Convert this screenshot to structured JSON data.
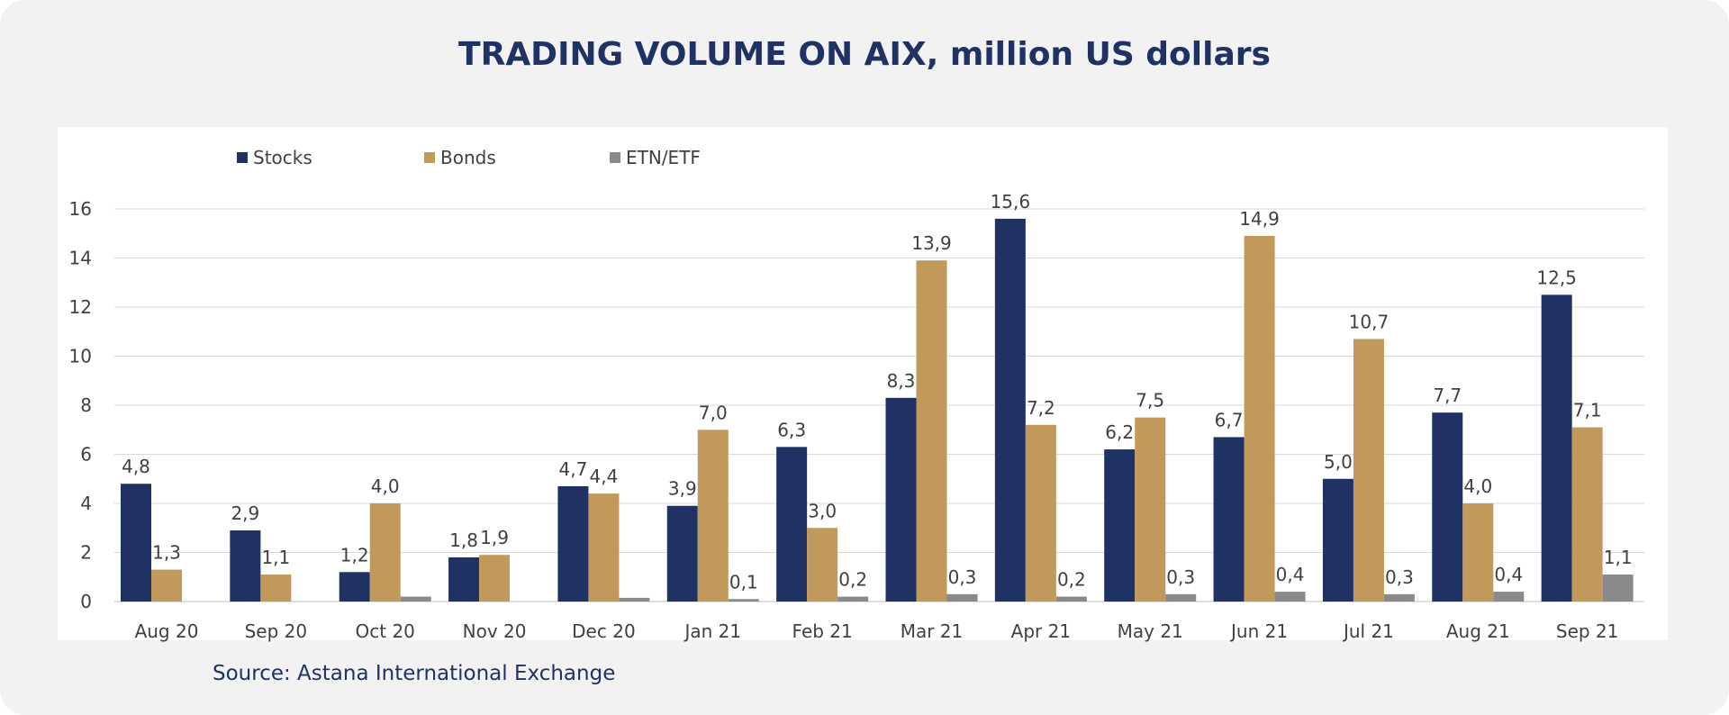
{
  "colors": {
    "stocks": "#1f3263",
    "bonds": "#c19a5b",
    "etn": "#8a8a8a",
    "grid": "#d9d9d9",
    "text": "#404040"
  },
  "source": "Source: Astana International Exchange",
  "chart_data": {
    "type": "bar",
    "title": "TRADING VOLUME ON AIX, million US dollars",
    "xlabel": "",
    "ylabel": "",
    "ylim": [
      0,
      16
    ],
    "yticks": [
      0,
      2,
      4,
      6,
      8,
      10,
      12,
      14,
      16
    ],
    "grid": true,
    "legend_position": "top-left",
    "categories": [
      "Aug 20",
      "Sep 20",
      "Oct 20",
      "Nov 20",
      "Dec 20",
      "Jan 21",
      "Feb 21",
      "Mar 21",
      "Apr 21",
      "May 21",
      "Jun 21",
      "Jul 21",
      "Aug 21",
      "Sep 21"
    ],
    "series": [
      {
        "name": "Stocks",
        "values": [
          4.8,
          2.9,
          1.2,
          1.8,
          4.7,
          3.9,
          6.3,
          8.3,
          15.6,
          6.2,
          6.7,
          5.0,
          7.7,
          12.5
        ],
        "labels": [
          "4,8",
          "2,9",
          "1,2",
          "1,8",
          "4,7",
          "3,9",
          "6,3",
          "8,3",
          "15,6",
          "6,2",
          "6,7",
          "5,0",
          "7,7",
          "12,5"
        ]
      },
      {
        "name": "Bonds",
        "values": [
          1.3,
          1.1,
          4.0,
          1.9,
          4.4,
          7.0,
          3.0,
          13.9,
          7.2,
          7.5,
          14.9,
          10.7,
          4.0,
          7.1
        ],
        "labels": [
          "1,3",
          "1,1",
          "4,0",
          "1,9",
          "4,4",
          "7,0",
          "3,0",
          "13,9",
          "7,2",
          "7,5",
          "14,9",
          "10,7",
          "4,0",
          "7,1"
        ]
      },
      {
        "name": "ETN/ETF",
        "values": [
          0,
          0,
          0.2,
          0,
          0.15,
          0.1,
          0.2,
          0.3,
          0.2,
          0.3,
          0.4,
          0.3,
          0.4,
          1.1
        ],
        "labels": [
          "",
          "",
          "",
          "",
          "",
          "0,1",
          "0,2",
          "0,3",
          "0,2",
          "0,3",
          "0,4",
          "0,3",
          "0,4",
          "1,1"
        ]
      }
    ]
  }
}
